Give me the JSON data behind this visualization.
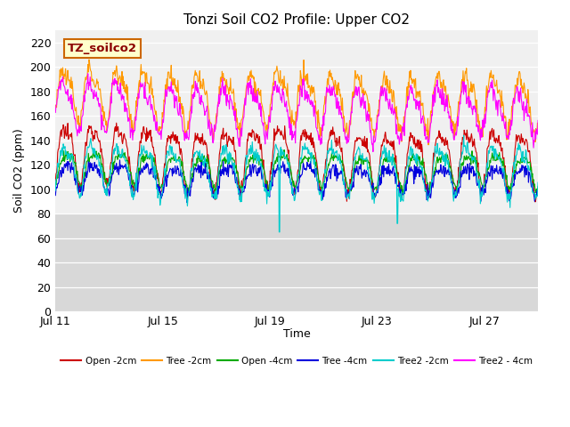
{
  "title": "Tonzi Soil CO2 Profile: Upper CO2",
  "ylabel": "Soil CO2 (ppm)",
  "xlabel": "Time",
  "watermark": "TZ_soilco2",
  "ylim": [
    0,
    230
  ],
  "yticks": [
    0,
    20,
    40,
    60,
    80,
    100,
    120,
    140,
    160,
    180,
    200,
    220
  ],
  "xtick_labels": [
    "Jul 11",
    "Jul 15",
    "Jul 19",
    "Jul 23",
    "Jul 27"
  ],
  "xtick_positions": [
    0,
    4,
    8,
    12,
    16
  ],
  "total_days": 18,
  "series": [
    {
      "label": "Open -2cm",
      "color": "#cc0000",
      "base": 130,
      "amplitude": 22,
      "noise": 3,
      "phase": 0.3,
      "trend": -0.3
    },
    {
      "label": "Tree -2cm",
      "color": "#ff9900",
      "base": 178,
      "amplitude": 20,
      "noise": 4,
      "phase": 0.2,
      "trend": -0.4
    },
    {
      "label": "Open -4cm",
      "color": "#00aa00",
      "base": 118,
      "amplitude": 12,
      "noise": 2,
      "phase": 0.4,
      "trend": -0.1
    },
    {
      "label": "Tree -4cm",
      "color": "#0000dd",
      "base": 110,
      "amplitude": 10,
      "noise": 3,
      "phase": 0.35,
      "trend": -0.1
    },
    {
      "label": "Tree2 -2cm",
      "color": "#00cccc",
      "base": 118,
      "amplitude": 18,
      "noise": 3,
      "phase": 0.25,
      "trend": -0.1
    },
    {
      "label": "Tree2 - 4cm",
      "color": "#ff00ff",
      "base": 168,
      "amplitude": 18,
      "noise": 4,
      "phase": 0.15,
      "trend": -0.3
    }
  ],
  "bg_color_plot": "#d8d8d8",
  "bg_color_active": "#f0f0f0",
  "grid_color": "#ffffff",
  "active_ymin": 80,
  "active_ymax": 230,
  "title_fontsize": 11,
  "axis_fontsize": 9,
  "tick_fontsize": 9
}
